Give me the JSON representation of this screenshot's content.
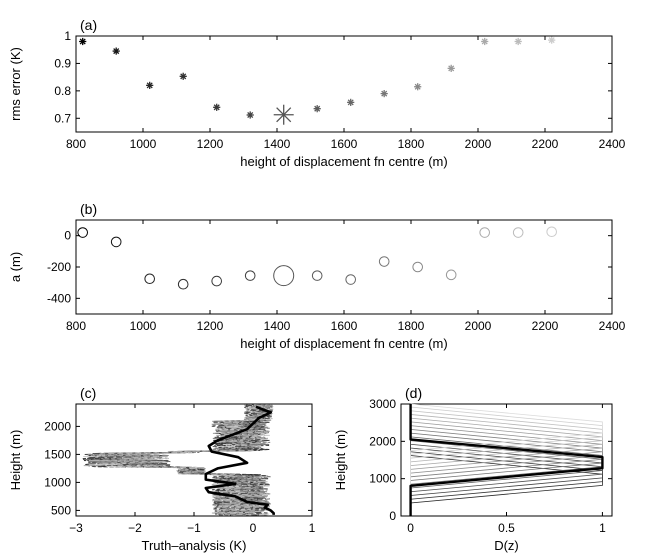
{
  "chart_data": [
    {
      "type": "scatter",
      "panel_label": "(a)",
      "xlabel": "height of displacement fn centre (m)",
      "ylabel": "rms error (K)",
      "xlim": [
        800,
        2400
      ],
      "ylim": [
        0.65,
        1.0
      ],
      "xticks": [
        "800",
        "1000",
        "1200",
        "1400",
        "1600",
        "1800",
        "2000",
        "2200",
        "2400"
      ],
      "yticks": [
        "0.7",
        "0.8",
        "0.9",
        "1"
      ],
      "grid": false,
      "marker": "asterisk",
      "points": [
        {
          "x": 820,
          "y": 0.98,
          "shade": "#000000"
        },
        {
          "x": 920,
          "y": 0.945,
          "shade": "#151515"
        },
        {
          "x": 1020,
          "y": 0.82,
          "shade": "#252525"
        },
        {
          "x": 1120,
          "y": 0.853,
          "shade": "#303030"
        },
        {
          "x": 1220,
          "y": 0.74,
          "shade": "#383838"
        },
        {
          "x": 1320,
          "y": 0.712,
          "shade": "#404040"
        },
        {
          "x": 1420,
          "y": 0.713,
          "shade": "#555555",
          "highlight": true
        },
        {
          "x": 1520,
          "y": 0.735,
          "shade": "#5a5a5a"
        },
        {
          "x": 1620,
          "y": 0.758,
          "shade": "#666666"
        },
        {
          "x": 1720,
          "y": 0.79,
          "shade": "#777777"
        },
        {
          "x": 1820,
          "y": 0.815,
          "shade": "#888888"
        },
        {
          "x": 1920,
          "y": 0.882,
          "shade": "#999999"
        },
        {
          "x": 2020,
          "y": 0.98,
          "shade": "#aaaaaa"
        },
        {
          "x": 2120,
          "y": 0.98,
          "shade": "#bbbbbb"
        },
        {
          "x": 2220,
          "y": 0.985,
          "shade": "#cccccc"
        }
      ]
    },
    {
      "type": "scatter",
      "panel_label": "(b)",
      "xlabel": "height of displacement fn centre (m)",
      "ylabel": "a (m)",
      "xlim": [
        800,
        2400
      ],
      "ylim": [
        -500,
        100
      ],
      "xticks": [
        "800",
        "1000",
        "1200",
        "1400",
        "1600",
        "1800",
        "2000",
        "2200",
        "2400"
      ],
      "yticks": [
        "-400",
        "-200",
        "0"
      ],
      "grid": false,
      "marker": "circle",
      "points": [
        {
          "x": 820,
          "y": 20,
          "shade": "#000000"
        },
        {
          "x": 920,
          "y": -40,
          "shade": "#151515"
        },
        {
          "x": 1020,
          "y": -275,
          "shade": "#252525"
        },
        {
          "x": 1120,
          "y": -310,
          "shade": "#303030"
        },
        {
          "x": 1220,
          "y": -290,
          "shade": "#383838"
        },
        {
          "x": 1320,
          "y": -255,
          "shade": "#404040"
        },
        {
          "x": 1420,
          "y": -255,
          "shade": "#555555",
          "highlight": true
        },
        {
          "x": 1520,
          "y": -255,
          "shade": "#5a5a5a"
        },
        {
          "x": 1620,
          "y": -280,
          "shade": "#666666"
        },
        {
          "x": 1720,
          "y": -165,
          "shade": "#777777"
        },
        {
          "x": 1820,
          "y": -200,
          "shade": "#888888"
        },
        {
          "x": 1920,
          "y": -250,
          "shade": "#999999"
        },
        {
          "x": 2020,
          "y": 20,
          "shade": "#aaaaaa"
        },
        {
          "x": 2120,
          "y": 20,
          "shade": "#bbbbbb"
        },
        {
          "x": 2220,
          "y": 25,
          "shade": "#cccccc"
        }
      ]
    },
    {
      "type": "line",
      "panel_label": "(c)",
      "xlabel": "Truth–analysis (K)",
      "ylabel": "Height (m)",
      "xlim": [
        -3,
        1
      ],
      "ylim": [
        400,
        2400
      ],
      "xticks": [
        "−3",
        "−2",
        "−1",
        "0",
        "1"
      ],
      "yticks": [
        "500",
        "1000",
        "1500",
        "2000"
      ],
      "grid": false,
      "best_profile": {
        "x": [
          0.05,
          0.3,
          0.1,
          0.0,
          -0.1,
          -0.35,
          -0.6,
          -0.75,
          -0.7,
          -0.25,
          -0.1,
          -0.6,
          -0.8,
          -0.8,
          -0.3,
          -0.8,
          -0.75,
          -0.3,
          -0.2,
          -0.1,
          0.25,
          0.2,
          0.3,
          0.35,
          0.35
        ],
        "y": [
          2350,
          2250,
          2150,
          2050,
          1950,
          1850,
          1750,
          1650,
          1550,
          1450,
          1350,
          1250,
          1150,
          1050,
          975,
          900,
          825,
          750,
          700,
          650,
          600,
          550,
          500,
          450,
          420
        ]
      },
      "other_profiles_note": "many dashed grey profiles for the other displacement centres"
    },
    {
      "type": "line",
      "panel_label": "(d)",
      "xlabel": "D(z)",
      "ylabel": "Height (m)",
      "xlim": [
        -0.05,
        1.05
      ],
      "ylim": [
        0,
        3000
      ],
      "xticks": [
        "0",
        "0.5",
        "1"
      ],
      "yticks": [
        "0",
        "1000",
        "2000",
        "3000"
      ],
      "grid": false,
      "best_profile": {
        "x": [
          0,
          0,
          1,
          1,
          0,
          0
        ],
        "y": [
          3000,
          2050,
          1580,
          1280,
          810,
          0
        ]
      },
      "family_centres": [
        820,
        920,
        1020,
        1120,
        1220,
        1320,
        1420,
        1520,
        1620,
        1720,
        1820,
        1920,
        2020,
        2120,
        2220
      ]
    }
  ]
}
